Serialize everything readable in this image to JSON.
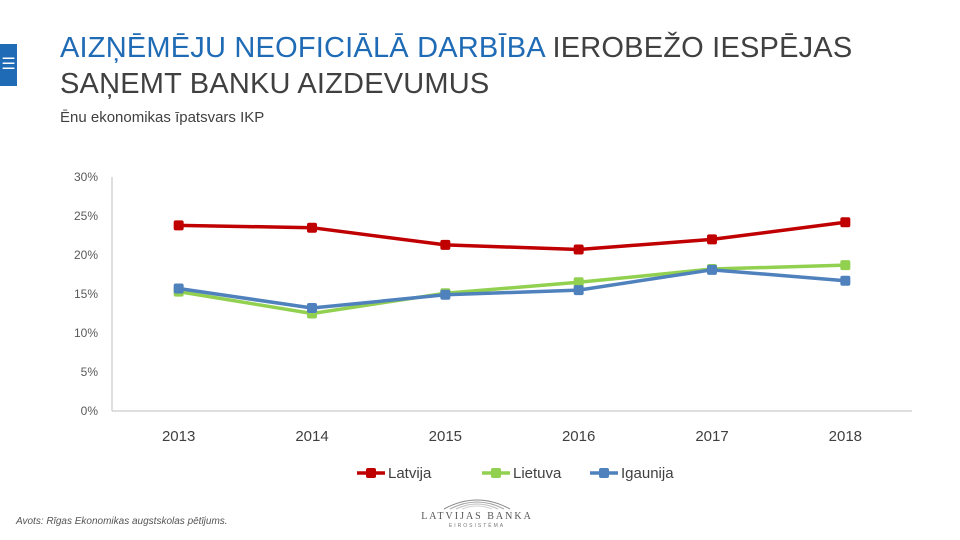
{
  "header": {
    "menu_icon": "hamburger-icon",
    "title_accent": "AIZŅĒMĒJU NEOFICIĀLĀ DARBĪBA",
    "title_rest": "IEROBEŽO IESPĒJAS SAŅEMT BANKU AIZDEVUMUS",
    "subtitle": "Ēnu ekonomikas īpatsvars IKP"
  },
  "chart_data": {
    "type": "line",
    "title": "Ēnu ekonomikas īpatsvars IKP",
    "categories": [
      "2013",
      "2014",
      "2015",
      "2016",
      "2017",
      "2018"
    ],
    "ylim": [
      0,
      30
    ],
    "yticks": [
      0,
      5,
      10,
      15,
      20,
      25,
      30
    ],
    "ytick_labels": [
      "0%",
      "5%",
      "10%",
      "15%",
      "20%",
      "25%",
      "30%"
    ],
    "grid": false,
    "legend_position": "bottom",
    "series": [
      {
        "name": "Latvija",
        "color": "#c00000",
        "values": [
          23.8,
          23.5,
          21.3,
          20.7,
          22.0,
          24.2
        ]
      },
      {
        "name": "Lietuva",
        "color": "#92d050",
        "values": [
          15.3,
          12.5,
          15.1,
          16.5,
          18.2,
          18.7
        ]
      },
      {
        "name": "Igaunija",
        "color": "#4f81bd",
        "values": [
          15.7,
          13.2,
          14.9,
          15.5,
          18.1,
          16.7
        ]
      }
    ]
  },
  "footer": {
    "source": "Avots: Rīgas Ekonomikas augstskolas pētījums.",
    "logo_name": "LATVIJAS BANKA",
    "logo_sub": "EIROSISTĒMA"
  }
}
